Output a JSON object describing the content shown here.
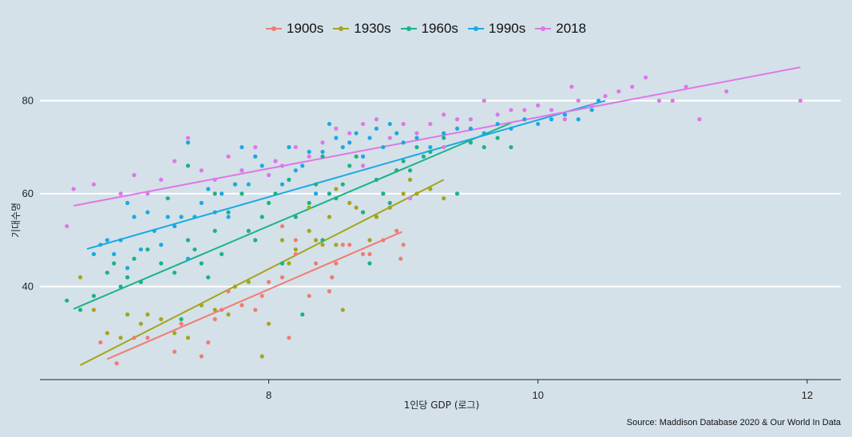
{
  "chart_data": {
    "type": "scatter",
    "xlabel": "1인당 GDP (로그)",
    "ylabel": "기대수명",
    "xlim": [
      6.3,
      12.25
    ],
    "ylim": [
      20,
      90
    ],
    "xticks": [
      8,
      10,
      12
    ],
    "yticks": [
      40,
      60,
      80
    ],
    "gridlines": "horizontal major",
    "legend_position": "top",
    "caption": "Source: Maddison Database 2020 & Our World In Data",
    "series": [
      {
        "name": "1900s",
        "color": "#f07c72",
        "trend": [
          [
            6.8,
            24.4
          ],
          [
            8.99,
            51.8
          ]
        ],
        "points": [
          [
            6.75,
            28
          ],
          [
            6.87,
            23.5
          ],
          [
            7.0,
            29
          ],
          [
            7.1,
            29
          ],
          [
            7.3,
            26
          ],
          [
            7.35,
            32
          ],
          [
            7.5,
            25
          ],
          [
            7.55,
            28
          ],
          [
            7.6,
            33
          ],
          [
            7.65,
            35
          ],
          [
            7.7,
            39
          ],
          [
            7.8,
            36
          ],
          [
            7.9,
            35
          ],
          [
            7.95,
            38
          ],
          [
            8.0,
            41
          ],
          [
            8.1,
            42
          ],
          [
            8.15,
            29
          ],
          [
            8.2,
            47
          ],
          [
            8.3,
            38
          ],
          [
            8.35,
            45
          ],
          [
            8.45,
            39
          ],
          [
            8.47,
            42
          ],
          [
            8.5,
            45
          ],
          [
            8.55,
            49
          ],
          [
            8.6,
            49
          ],
          [
            8.7,
            47
          ],
          [
            8.75,
            47
          ],
          [
            8.8,
            55
          ],
          [
            8.85,
            50
          ],
          [
            8.9,
            57
          ],
          [
            8.95,
            52
          ],
          [
            8.98,
            46
          ],
          [
            9.0,
            49
          ],
          [
            8.1,
            53
          ],
          [
            8.2,
            50
          ]
        ]
      },
      {
        "name": "1930s",
        "color": "#a3a51c",
        "trend": [
          [
            6.6,
            23.1
          ],
          [
            9.3,
            63.0
          ]
        ],
        "points": [
          [
            6.6,
            42
          ],
          [
            6.7,
            35
          ],
          [
            6.8,
            30
          ],
          [
            6.9,
            29
          ],
          [
            6.95,
            34
          ],
          [
            7.05,
            32
          ],
          [
            7.1,
            34
          ],
          [
            7.2,
            33
          ],
          [
            7.3,
            30
          ],
          [
            7.4,
            29
          ],
          [
            7.5,
            36
          ],
          [
            7.6,
            35
          ],
          [
            7.7,
            34
          ],
          [
            7.75,
            40
          ],
          [
            7.85,
            41
          ],
          [
            7.95,
            25
          ],
          [
            8.0,
            32
          ],
          [
            8.1,
            50
          ],
          [
            8.15,
            45
          ],
          [
            8.2,
            48
          ],
          [
            8.3,
            52
          ],
          [
            8.35,
            50
          ],
          [
            8.4,
            49
          ],
          [
            8.45,
            55
          ],
          [
            8.5,
            49
          ],
          [
            8.55,
            35
          ],
          [
            8.6,
            58
          ],
          [
            8.65,
            57
          ],
          [
            8.7,
            56
          ],
          [
            8.75,
            50
          ],
          [
            8.8,
            55
          ],
          [
            8.85,
            60
          ],
          [
            8.9,
            57
          ],
          [
            8.95,
            65
          ],
          [
            9.0,
            60
          ],
          [
            9.05,
            63
          ],
          [
            9.1,
            60
          ],
          [
            9.2,
            61
          ],
          [
            9.3,
            59
          ],
          [
            8.5,
            61
          ],
          [
            8.3,
            57
          ]
        ]
      },
      {
        "name": "1960s",
        "color": "#19b387",
        "trend": [
          [
            6.55,
            35.2
          ],
          [
            9.8,
            75.2
          ]
        ],
        "points": [
          [
            6.5,
            37
          ],
          [
            6.6,
            35
          ],
          [
            6.7,
            38
          ],
          [
            6.8,
            43
          ],
          [
            6.85,
            45
          ],
          [
            6.9,
            40
          ],
          [
            6.95,
            42
          ],
          [
            7.0,
            46
          ],
          [
            7.05,
            41
          ],
          [
            7.1,
            48
          ],
          [
            7.2,
            45
          ],
          [
            7.25,
            59
          ],
          [
            7.3,
            43
          ],
          [
            7.35,
            33
          ],
          [
            7.4,
            50
          ],
          [
            7.45,
            48
          ],
          [
            7.5,
            45
          ],
          [
            7.55,
            42
          ],
          [
            7.6,
            52
          ],
          [
            7.65,
            47
          ],
          [
            7.7,
            56
          ],
          [
            7.75,
            62
          ],
          [
            7.8,
            60
          ],
          [
            7.85,
            52
          ],
          [
            7.9,
            50
          ],
          [
            7.95,
            55
          ],
          [
            8.0,
            58
          ],
          [
            8.05,
            60
          ],
          [
            8.1,
            45
          ],
          [
            8.15,
            63
          ],
          [
            8.2,
            55
          ],
          [
            8.25,
            34
          ],
          [
            8.3,
            58
          ],
          [
            8.35,
            62
          ],
          [
            8.4,
            50
          ],
          [
            8.45,
            60
          ],
          [
            8.5,
            59
          ],
          [
            8.55,
            62
          ],
          [
            8.6,
            66
          ],
          [
            8.65,
            68
          ],
          [
            8.7,
            56
          ],
          [
            8.75,
            45
          ],
          [
            8.8,
            63
          ],
          [
            8.85,
            60
          ],
          [
            8.9,
            58
          ],
          [
            8.95,
            65
          ],
          [
            9.0,
            67
          ],
          [
            9.05,
            65
          ],
          [
            9.1,
            70
          ],
          [
            9.15,
            68
          ],
          [
            9.2,
            69
          ],
          [
            9.3,
            72
          ],
          [
            9.4,
            60
          ],
          [
            9.5,
            71
          ],
          [
            9.6,
            70
          ],
          [
            9.7,
            72
          ],
          [
            9.8,
            70
          ],
          [
            7.4,
            66
          ],
          [
            7.6,
            60
          ],
          [
            8.4,
            68
          ]
        ]
      },
      {
        "name": "1990s",
        "color": "#1aa9e3",
        "trend": [
          [
            6.65,
            48.1
          ],
          [
            10.5,
            80.0
          ]
        ],
        "points": [
          [
            6.7,
            47
          ],
          [
            6.75,
            49
          ],
          [
            6.8,
            50
          ],
          [
            6.85,
            47
          ],
          [
            6.9,
            50
          ],
          [
            6.95,
            44
          ],
          [
            7.0,
            55
          ],
          [
            7.05,
            48
          ],
          [
            7.1,
            56
          ],
          [
            7.15,
            52
          ],
          [
            7.2,
            49
          ],
          [
            7.25,
            55
          ],
          [
            7.3,
            53
          ],
          [
            7.35,
            55
          ],
          [
            7.4,
            46
          ],
          [
            7.45,
            55
          ],
          [
            7.5,
            58
          ],
          [
            7.55,
            61
          ],
          [
            7.6,
            56
          ],
          [
            7.65,
            60
          ],
          [
            7.7,
            55
          ],
          [
            7.75,
            62
          ],
          [
            7.8,
            65
          ],
          [
            7.85,
            62
          ],
          [
            7.9,
            68
          ],
          [
            7.95,
            66
          ],
          [
            8.0,
            64
          ],
          [
            8.05,
            67
          ],
          [
            8.1,
            62
          ],
          [
            8.15,
            70
          ],
          [
            8.2,
            65
          ],
          [
            8.25,
            66
          ],
          [
            8.3,
            69
          ],
          [
            8.35,
            60
          ],
          [
            8.4,
            69
          ],
          [
            8.45,
            75
          ],
          [
            8.5,
            72
          ],
          [
            8.55,
            70
          ],
          [
            8.6,
            71
          ],
          [
            8.65,
            73
          ],
          [
            8.7,
            68
          ],
          [
            8.75,
            72
          ],
          [
            8.8,
            74
          ],
          [
            8.85,
            70
          ],
          [
            8.9,
            75
          ],
          [
            8.95,
            73
          ],
          [
            9.0,
            71
          ],
          [
            9.1,
            72
          ],
          [
            9.2,
            70
          ],
          [
            9.3,
            73
          ],
          [
            9.4,
            74
          ],
          [
            9.5,
            74
          ],
          [
            9.6,
            73
          ],
          [
            9.7,
            75
          ],
          [
            9.8,
            74
          ],
          [
            9.9,
            76
          ],
          [
            10.0,
            75
          ],
          [
            10.1,
            76
          ],
          [
            10.2,
            77
          ],
          [
            10.3,
            76
          ],
          [
            10.4,
            78
          ],
          [
            10.45,
            80
          ],
          [
            7.4,
            71
          ],
          [
            6.95,
            58
          ],
          [
            7.8,
            70
          ]
        ]
      },
      {
        "name": "2018",
        "color": "#e076e8",
        "trend": [
          [
            6.55,
            57.4
          ],
          [
            11.95,
            87.2
          ]
        ],
        "points": [
          [
            6.5,
            53
          ],
          [
            6.55,
            61
          ],
          [
            6.7,
            62
          ],
          [
            6.9,
            60
          ],
          [
            7.0,
            64
          ],
          [
            7.1,
            60
          ],
          [
            7.2,
            63
          ],
          [
            7.3,
            67
          ],
          [
            7.4,
            72
          ],
          [
            7.5,
            65
          ],
          [
            7.6,
            63
          ],
          [
            7.7,
            68
          ],
          [
            7.8,
            65
          ],
          [
            7.9,
            70
          ],
          [
            8.0,
            64
          ],
          [
            8.05,
            67
          ],
          [
            8.1,
            66
          ],
          [
            8.2,
            70
          ],
          [
            8.3,
            68
          ],
          [
            8.4,
            71
          ],
          [
            8.5,
            74
          ],
          [
            8.6,
            73
          ],
          [
            8.7,
            75
          ],
          [
            8.8,
            76
          ],
          [
            8.9,
            72
          ],
          [
            9.0,
            75
          ],
          [
            9.05,
            59
          ],
          [
            9.1,
            73
          ],
          [
            9.2,
            75
          ],
          [
            9.3,
            77
          ],
          [
            9.4,
            76
          ],
          [
            9.5,
            76
          ],
          [
            9.6,
            80
          ],
          [
            9.7,
            77
          ],
          [
            9.8,
            78
          ],
          [
            9.9,
            78
          ],
          [
            10.0,
            79
          ],
          [
            10.1,
            78
          ],
          [
            10.2,
            76
          ],
          [
            10.3,
            80
          ],
          [
            10.4,
            79
          ],
          [
            10.5,
            81
          ],
          [
            10.6,
            82
          ],
          [
            10.7,
            83
          ],
          [
            10.8,
            85
          ],
          [
            10.9,
            80
          ],
          [
            11.0,
            80
          ],
          [
            11.1,
            83
          ],
          [
            11.2,
            76
          ],
          [
            11.4,
            82
          ],
          [
            11.95,
            80
          ],
          [
            8.7,
            66
          ],
          [
            9.3,
            70
          ],
          [
            10.25,
            83
          ]
        ]
      }
    ]
  }
}
